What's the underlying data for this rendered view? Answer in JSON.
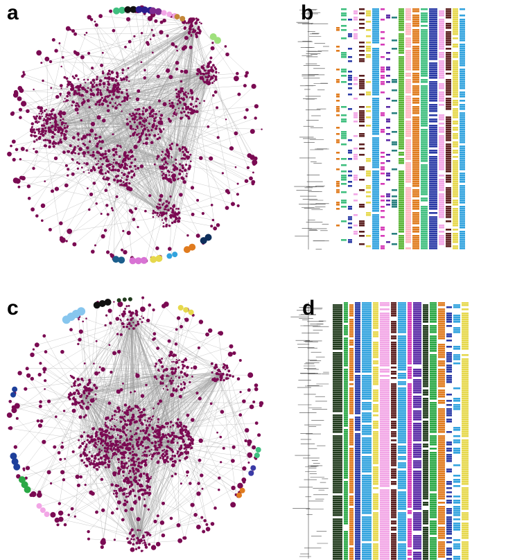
{
  "panels": [
    {
      "label": "a",
      "kind": "network"
    },
    {
      "label": "b",
      "kind": "heatmap"
    },
    {
      "label": "c",
      "kind": "network"
    },
    {
      "label": "d",
      "kind": "heatmap"
    }
  ],
  "colors": {
    "main_node": "#7a0a52",
    "edge": "#9a9a9a",
    "tree": "#444444",
    "peripheral_a": [
      "#3fbf7f",
      "#111111",
      "#2b1d8e",
      "#7d2a8f",
      "#f2a6e6",
      "#c4883a",
      "#9fe07c",
      "#1b5e8c",
      "#d873d4",
      "#e6d84c",
      "#32a3de",
      "#e07b1e",
      "#0e2f5c"
    ],
    "peripheral_c": [
      "#87c6ee",
      "#101010",
      "#203a1c",
      "#e6d84c",
      "#1d3f9a",
      "#2aa845",
      "#f2a6e6",
      "#e07b1e",
      "#3a3aa6",
      "#3fbf7f"
    ],
    "heatmap_b": [
      "#e07b1e",
      "#3fbf7f",
      "#2a3aa6",
      "#f2a6e6",
      "#5a1e1e",
      "#e6d84c",
      "#32a3de",
      "#d63ab8",
      "#5b2aa6",
      "#2a8080",
      "#5ab535",
      "#ffb6c1"
    ],
    "heatmap_d": [
      "#203a1c",
      "#2aa845",
      "#e07b1e",
      "#2a3aa6",
      "#32a3de",
      "#e6d84c",
      "#f2a6e6",
      "#5a1e1e",
      "#32a3de",
      "#d63ab8",
      "#5b2aa6"
    ]
  }
}
